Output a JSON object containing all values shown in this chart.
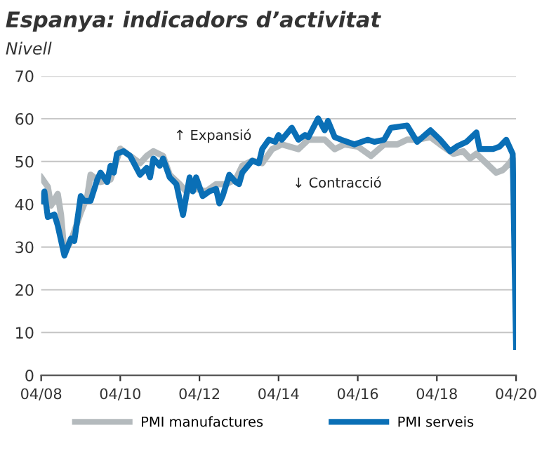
{
  "chart_data": {
    "type": "line",
    "title": "Espanya: indicadors d’activitat",
    "subtitle": "Nivell",
    "xlim": [
      "2008-04",
      "2020-04"
    ],
    "xticks": [
      {
        "value": "2008-04",
        "label": "04/08"
      },
      {
        "value": "2010-04",
        "label": "04/10"
      },
      {
        "value": "2012-04",
        "label": "04/12"
      },
      {
        "value": "2014-04",
        "label": "04/14"
      },
      {
        "value": "2016-04",
        "label": "04/16"
      },
      {
        "value": "2018-04",
        "label": "04/18"
      },
      {
        "value": "2020-04",
        "label": "04/20"
      }
    ],
    "ylim": [
      0,
      70
    ],
    "yticks": [
      0,
      10,
      20,
      30,
      40,
      50,
      60,
      70
    ],
    "grid": "y",
    "legend": "bottom",
    "annotations": [
      "↑ Expansió",
      "↓ Contracció"
    ],
    "series": [
      {
        "name": "PMI manufactures",
        "color": "#b4babd",
        "x": [
          "2008-04",
          "2008-06",
          "2008-07",
          "2008-09",
          "2008-10",
          "2008-11",
          "2009-01",
          "2009-04",
          "2009-06",
          "2009-07",
          "2009-10",
          "2010-01",
          "2010-04",
          "2010-07",
          "2010-10",
          "2010-12",
          "2011-02",
          "2011-05",
          "2011-07",
          "2011-10",
          "2011-12",
          "2012-03",
          "2012-06",
          "2012-09",
          "2012-12",
          "2013-03",
          "2013-05",
          "2013-08",
          "2013-11",
          "2014-02",
          "2014-05",
          "2014-10",
          "2015-01",
          "2015-04",
          "2015-06",
          "2015-09",
          "2015-12",
          "2016-04",
          "2016-08",
          "2016-12",
          "2017-04",
          "2017-07",
          "2017-10",
          "2018-02",
          "2018-05",
          "2018-09",
          "2018-12",
          "2019-02",
          "2019-04",
          "2019-07",
          "2019-10",
          "2019-12",
          "2020-02",
          "2020-03",
          "2020-04"
        ],
        "values": [
          46.3,
          44.1,
          39.7,
          42.4,
          37.5,
          28.7,
          31.4,
          38,
          41.9,
          46.9,
          45.2,
          45.8,
          53,
          51.3,
          49.6,
          51.3,
          52.4,
          51.3,
          46.9,
          44.7,
          43,
          43.6,
          43,
          44.7,
          44.7,
          45.8,
          49,
          50.2,
          49.6,
          52.9,
          54,
          52.9,
          55.1,
          55.1,
          55.1,
          52.9,
          54,
          53.5,
          51.3,
          54,
          54,
          55.1,
          55.1,
          55.7,
          54,
          51.8,
          52.4,
          50.7,
          51.8,
          49.6,
          47.4,
          48,
          49.6,
          50.7,
          30.9
        ]
      },
      {
        "name": "PMI serveis",
        "color": "#0a6fb6",
        "x": [
          "2008-04",
          "2008-05",
          "2008-06",
          "2008-08",
          "2008-09",
          "2008-11",
          "2009-01",
          "2009-02",
          "2009-04",
          "2009-05",
          "2009-07",
          "2009-09",
          "2009-10",
          "2009-12",
          "2010-01",
          "2010-02",
          "2010-03",
          "2010-05",
          "2010-07",
          "2010-10",
          "2010-12",
          "2011-01",
          "2011-02",
          "2011-04",
          "2011-05",
          "2011-07",
          "2011-09",
          "2011-11",
          "2012-01",
          "2012-02",
          "2012-03",
          "2012-05",
          "2012-07",
          "2012-09",
          "2012-10",
          "2012-11",
          "2013-01",
          "2013-03",
          "2013-04",
          "2013-05",
          "2013-08",
          "2013-10",
          "2013-11",
          "2014-01",
          "2014-03",
          "2014-04",
          "2014-05",
          "2014-08",
          "2014-10",
          "2014-12",
          "2015-01",
          "2015-04",
          "2015-06",
          "2015-07",
          "2015-09",
          "2015-11",
          "2016-03",
          "2016-07",
          "2016-09",
          "2016-12",
          "2017-02",
          "2017-07",
          "2017-10",
          "2018-02",
          "2018-05",
          "2018-08",
          "2018-10",
          "2019-01",
          "2019-04",
          "2019-05",
          "2019-09",
          "2019-11",
          "2020-01",
          "2020-03",
          "2020-04"
        ],
        "values": [
          40.8,
          43,
          37,
          37.6,
          35,
          28,
          32,
          31.4,
          41.9,
          40.8,
          40.8,
          45.8,
          47.4,
          45.2,
          49,
          47.4,
          51.8,
          52.4,
          51.3,
          46.9,
          48.5,
          46.3,
          50.7,
          49,
          50.7,
          46.3,
          44.7,
          37.5,
          46.3,
          43,
          46.3,
          41.9,
          43,
          43.6,
          40.2,
          41.9,
          46.9,
          45.2,
          44.7,
          47.4,
          50.2,
          49.6,
          52.9,
          55.1,
          54.6,
          56.2,
          55.1,
          57.9,
          55.1,
          56.2,
          55.7,
          60.1,
          57.3,
          59.5,
          55.7,
          55.1,
          54,
          55.1,
          54.6,
          55.1,
          57.9,
          58.4,
          54.6,
          57.3,
          55.1,
          52.4,
          53.5,
          54.6,
          56.8,
          52.9,
          52.9,
          53.5,
          55.1,
          51.8,
          6.6
        ]
      }
    ]
  }
}
